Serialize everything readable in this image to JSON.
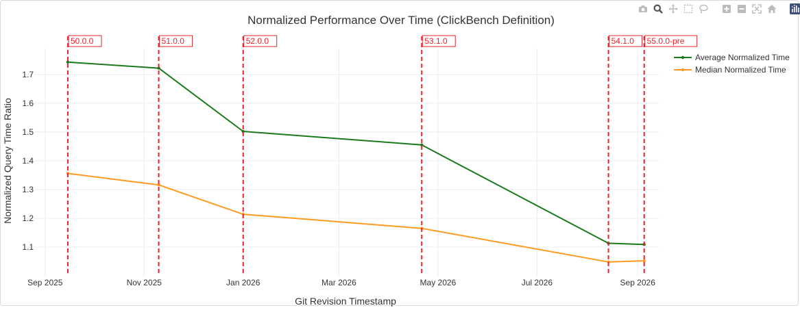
{
  "chart_data": {
    "type": "line",
    "title": "Normalized Performance Over Time (ClickBench Definition)",
    "xlabel": "Git Revision Timestamp",
    "ylabel": "Normalized Query Time Ratio",
    "x_ticks": [
      "Sep 2025",
      "Nov 2025",
      "Jan 2026",
      "Mar 2026",
      "May 2026",
      "Jul 2026",
      "Sep 2026"
    ],
    "y_ticks": [
      1.1,
      1.2,
      1.3,
      1.4,
      1.5,
      1.6,
      1.7
    ],
    "xlim": [
      "2025-08-19",
      "2026-09-14"
    ],
    "ylim": [
      1.0,
      1.79
    ],
    "grid": true,
    "legend_position": "top-right",
    "series": [
      {
        "name": "Average Normalized Time",
        "color": "#1a7a1a",
        "x": [
          "2025-09-15",
          "2025-11-10",
          "2026-01-01",
          "2026-04-21",
          "2026-08-14",
          "2026-09-05"
        ],
        "y": [
          1.743,
          1.722,
          1.502,
          1.455,
          1.113,
          1.109
        ]
      },
      {
        "name": "Median Normalized Time",
        "color": "#ff9a1f",
        "x": [
          "2025-09-15",
          "2025-11-10",
          "2026-01-01",
          "2026-04-21",
          "2026-08-14",
          "2026-09-05"
        ],
        "y": [
          1.356,
          1.316,
          1.214,
          1.165,
          1.048,
          1.052
        ]
      }
    ],
    "releases": [
      {
        "label": "50.0.0",
        "x": "2025-09-15"
      },
      {
        "label": "51.0.0",
        "x": "2025-11-10"
      },
      {
        "label": "52.0.0",
        "x": "2026-01-01"
      },
      {
        "label": "53.1.0",
        "x": "2026-04-21"
      },
      {
        "label": "54.1.0",
        "x": "2026-08-14"
      },
      {
        "label": "55.0.0-pre",
        "x": "2026-09-05"
      }
    ],
    "release_color": "#e8222a"
  },
  "toolbar": {
    "icons": [
      "camera-icon",
      "zoom-icon",
      "pan-icon",
      "box-select-icon",
      "lasso-icon",
      "zoom-in-icon",
      "zoom-out-icon",
      "autoscale-icon",
      "reset-axes-icon",
      "plotly-logo-icon"
    ]
  }
}
